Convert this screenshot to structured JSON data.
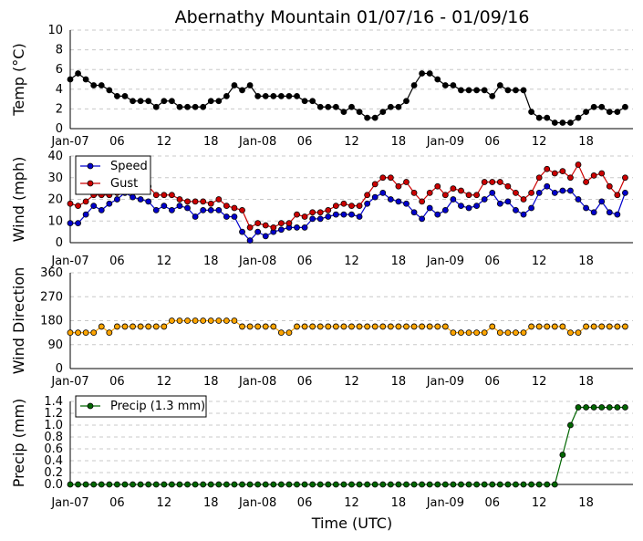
{
  "chart_data": {
    "type": "line",
    "title": "Abernathy Mountain 01/07/16 - 01/09/16",
    "xlabel": "Time (UTC)",
    "x_tick_labels": [
      "Jan-07",
      "06",
      "12",
      "18",
      "Jan-08",
      "06",
      "12",
      "18",
      "Jan-09",
      "06",
      "12",
      "18"
    ],
    "x_tick_hours": [
      0,
      6,
      12,
      18,
      24,
      30,
      36,
      42,
      48,
      54,
      60,
      66
    ],
    "x_range_hours": [
      0,
      72
    ],
    "panels": [
      {
        "id": "temp",
        "ylabel": "Temp (°C)",
        "ylim": [
          0,
          10
        ],
        "yticks": [
          0,
          2,
          4,
          6,
          8,
          10
        ],
        "ytick_labels": [
          "0",
          "2",
          "4",
          "6",
          "8",
          "10"
        ],
        "grid": true,
        "series": [
          {
            "name": "Temp",
            "color": "#000000",
            "values": [
              5.0,
              5.6,
              5.0,
              4.4,
              4.4,
              3.9,
              3.3,
              3.3,
              2.8,
              2.8,
              2.8,
              2.2,
              2.8,
              2.8,
              2.2,
              2.2,
              2.2,
              2.2,
              2.8,
              2.8,
              3.3,
              4.4,
              3.9,
              4.4,
              3.3,
              3.3,
              3.3,
              3.3,
              3.3,
              3.3,
              2.8,
              2.8,
              2.2,
              2.2,
              2.2,
              1.7,
              2.2,
              1.7,
              1.1,
              1.1,
              1.7,
              2.2,
              2.2,
              2.8,
              4.4,
              5.6,
              5.6,
              5.0,
              4.4,
              4.4,
              3.9,
              3.9,
              3.9,
              3.9,
              3.3,
              4.4,
              3.9,
              3.9,
              3.9,
              1.7,
              1.1,
              1.1,
              0.6,
              0.6,
              0.6,
              1.1,
              1.7,
              2.2,
              2.2,
              1.7,
              1.7,
              2.2
            ]
          }
        ]
      },
      {
        "id": "wind",
        "ylabel": "Wind (mph)",
        "ylim": [
          0,
          40
        ],
        "yticks": [
          0,
          10,
          20,
          30,
          40
        ],
        "ytick_labels": [
          "0",
          "10",
          "20",
          "30",
          "40"
        ],
        "grid": true,
        "legend": "top-left",
        "series": [
          {
            "name": "Speed",
            "color": "#0000cc",
            "values": [
              9,
              9,
              13,
              17,
              15,
              18,
              20,
              23,
              21,
              20,
              19,
              15,
              17,
              15,
              17,
              16,
              12,
              15,
              15,
              15,
              12,
              12,
              5,
              1,
              5,
              3,
              5,
              6,
              7,
              7,
              7,
              11,
              11,
              12,
              13,
              13,
              13,
              12,
              18,
              21,
              23,
              20,
              19,
              18,
              14,
              11,
              16,
              13,
              15,
              20,
              17,
              16,
              17,
              20,
              23,
              18,
              19,
              15,
              13,
              16,
              23,
              26,
              23,
              24,
              24,
              20,
              16,
              14,
              19,
              14,
              13,
              23
            ]
          },
          {
            "name": "Gust",
            "color": "#cc0000",
            "values": [
              18,
              17,
              19,
              22,
              22,
              22,
              23,
              24,
              24,
              24,
              26,
              22,
              22,
              22,
              20,
              19,
              19,
              19,
              18,
              20,
              17,
              16,
              15,
              7,
              9,
              8,
              7,
              9,
              9,
              13,
              12,
              14,
              14,
              15,
              17,
              18,
              17,
              17,
              22,
              27,
              30,
              30,
              26,
              28,
              23,
              19,
              23,
              26,
              22,
              25,
              24,
              22,
              22,
              28,
              28,
              28,
              26,
              23,
              20,
              23,
              30,
              34,
              32,
              33,
              30,
              36,
              28,
              31,
              32,
              26,
              22,
              30
            ]
          }
        ]
      },
      {
        "id": "direction",
        "ylabel": "Wind Direction",
        "ylim": [
          0,
          360
        ],
        "yticks": [
          0,
          90,
          180,
          270,
          360
        ],
        "ytick_labels": [
          "0",
          "90",
          "180",
          "270",
          "360"
        ],
        "grid": true,
        "series": [
          {
            "name": "Direction",
            "color": "#ffa500",
            "values": [
              135,
              135,
              135,
              135,
              158,
              135,
              158,
              158,
              158,
              158,
              158,
              158,
              158,
              180,
              180,
              180,
              180,
              180,
              180,
              180,
              180,
              180,
              158,
              158,
              158,
              158,
              158,
              135,
              135,
              158,
              158,
              158,
              158,
              158,
              158,
              158,
              158,
              158,
              158,
              158,
              158,
              158,
              158,
              158,
              158,
              158,
              158,
              158,
              158,
              135,
              135,
              135,
              135,
              135,
              158,
              135,
              135,
              135,
              135,
              158,
              158,
              158,
              158,
              158,
              135,
              135,
              158,
              158,
              158,
              158,
              158,
              158
            ]
          }
        ]
      },
      {
        "id": "precip",
        "ylabel": "Precip (mm)",
        "ylim": [
          0,
          1.4
        ],
        "yticks": [
          0.0,
          0.2,
          0.4,
          0.6,
          0.8,
          1.0,
          1.2,
          1.4
        ],
        "ytick_labels": [
          "0.0",
          "0.2",
          "0.4",
          "0.6",
          "0.8",
          "1.0",
          "1.2",
          "1.4"
        ],
        "grid": true,
        "legend": "top-left",
        "series": [
          {
            "name": "Precip (1.3 mm)",
            "color": "#006600",
            "values": [
              0,
              0,
              0,
              0,
              0,
              0,
              0,
              0,
              0,
              0,
              0,
              0,
              0,
              0,
              0,
              0,
              0,
              0,
              0,
              0,
              0,
              0,
              0,
              0,
              0,
              0,
              0,
              0,
              0,
              0,
              0,
              0,
              0,
              0,
              0,
              0,
              0,
              0,
              0,
              0,
              0,
              0,
              0,
              0,
              0,
              0,
              0,
              0,
              0,
              0,
              0,
              0,
              0,
              0,
              0,
              0,
              0,
              0,
              0,
              0,
              0,
              0,
              0,
              0.5,
              1.0,
              1.3,
              1.3,
              1.3,
              1.3,
              1.3,
              1.3,
              1.3
            ]
          }
        ]
      }
    ]
  }
}
